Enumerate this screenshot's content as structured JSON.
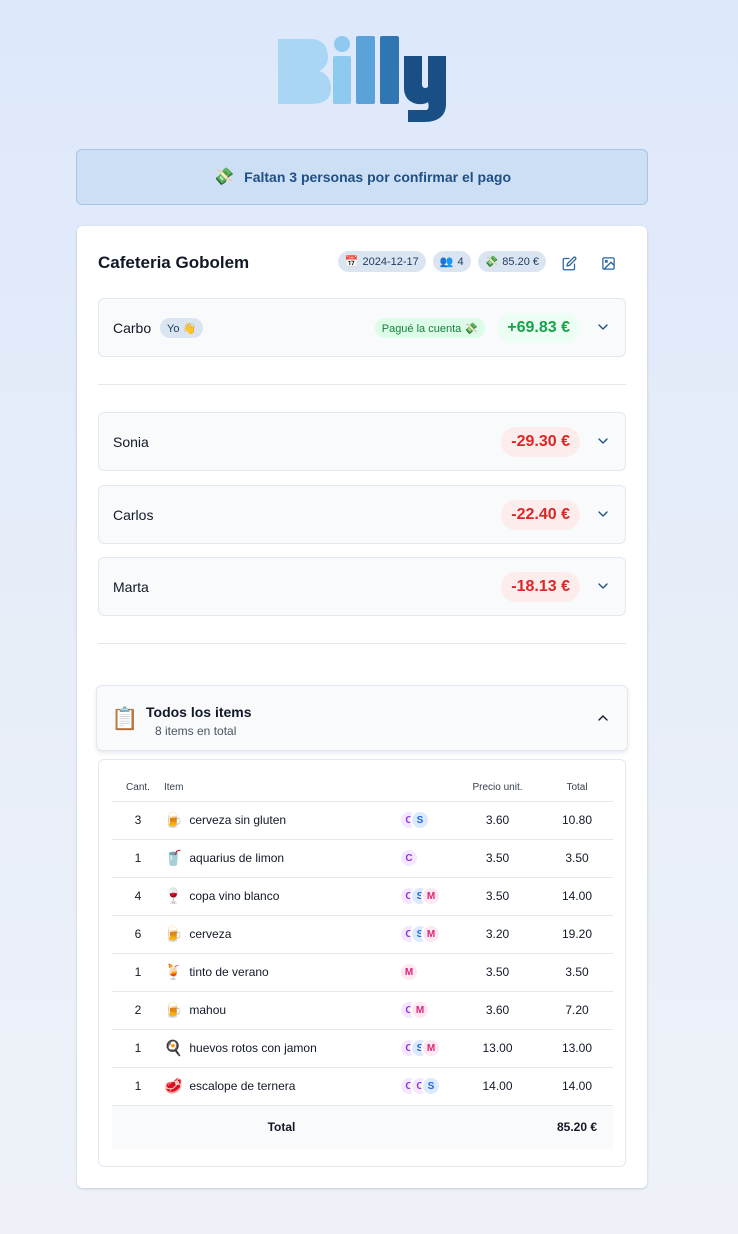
{
  "logo": {
    "text": "Billy"
  },
  "banner": {
    "emoji": "💸",
    "text": "Faltan 3 personas por confirmar el pago"
  },
  "bill": {
    "title": "Cafeteria Gobolem",
    "chips": {
      "date_emoji": "📅",
      "date": "2024-12-17",
      "people_emoji": "👥",
      "people": "4",
      "total_emoji": "💸",
      "total": "85.20 €"
    }
  },
  "participants": [
    {
      "name": "Carbo",
      "me_badge": "Yo 👋",
      "paid_badge": "Pagué la cuenta 💸",
      "amount": "+69.83 €",
      "positive": true
    },
    {
      "name": "Sonia",
      "amount": "-29.30 €"
    },
    {
      "name": "Carlos",
      "amount": "-22.40 €"
    },
    {
      "name": "Marta",
      "amount": "-18.13 €"
    }
  ],
  "items_section": {
    "emoji": "📋",
    "title": "Todos los items",
    "subtitle": "8 items en total",
    "columns": {
      "qty": "Cant.",
      "item": "Item",
      "price": "Precio unit.",
      "total": "Total"
    },
    "rows": [
      {
        "qty": "3",
        "emoji": "🍺",
        "name": "cerveza sin gluten",
        "avatars": [
          "C",
          "S"
        ],
        "price": "3.60",
        "total": "10.80"
      },
      {
        "qty": "1",
        "emoji": "🥤",
        "name": "aquarius de limon",
        "avatars": [
          "C"
        ],
        "price": "3.50",
        "total": "3.50"
      },
      {
        "qty": "4",
        "emoji": "🍷",
        "name": "copa vino blanco",
        "avatars": [
          "C",
          "S",
          "M"
        ],
        "price": "3.50",
        "total": "14.00"
      },
      {
        "qty": "6",
        "emoji": "🍺",
        "name": "cerveza",
        "avatars": [
          "C",
          "S",
          "M"
        ],
        "price": "3.20",
        "total": "19.20"
      },
      {
        "qty": "1",
        "emoji": "🍹",
        "name": "tinto de verano",
        "avatars": [
          "M"
        ],
        "price": "3.50",
        "total": "3.50"
      },
      {
        "qty": "2",
        "emoji": "🍺",
        "name": "mahou",
        "avatars": [
          "C",
          "M"
        ],
        "price": "3.60",
        "total": "7.20"
      },
      {
        "qty": "1",
        "emoji": "🍳",
        "name": "huevos rotos con jamon",
        "avatars": [
          "C",
          "S",
          "M"
        ],
        "price": "13.00",
        "total": "13.00"
      },
      {
        "qty": "1",
        "emoji": "🥩",
        "name": "escalope de ternera",
        "avatars": [
          "C",
          "C",
          "S"
        ],
        "price": "14.00",
        "total": "14.00"
      }
    ],
    "total_label": "Total",
    "total_value": "85.20 €"
  },
  "colors": {
    "positive": "#16a34a",
    "negative": "#dc2626",
    "accent": "#1e4f86"
  }
}
